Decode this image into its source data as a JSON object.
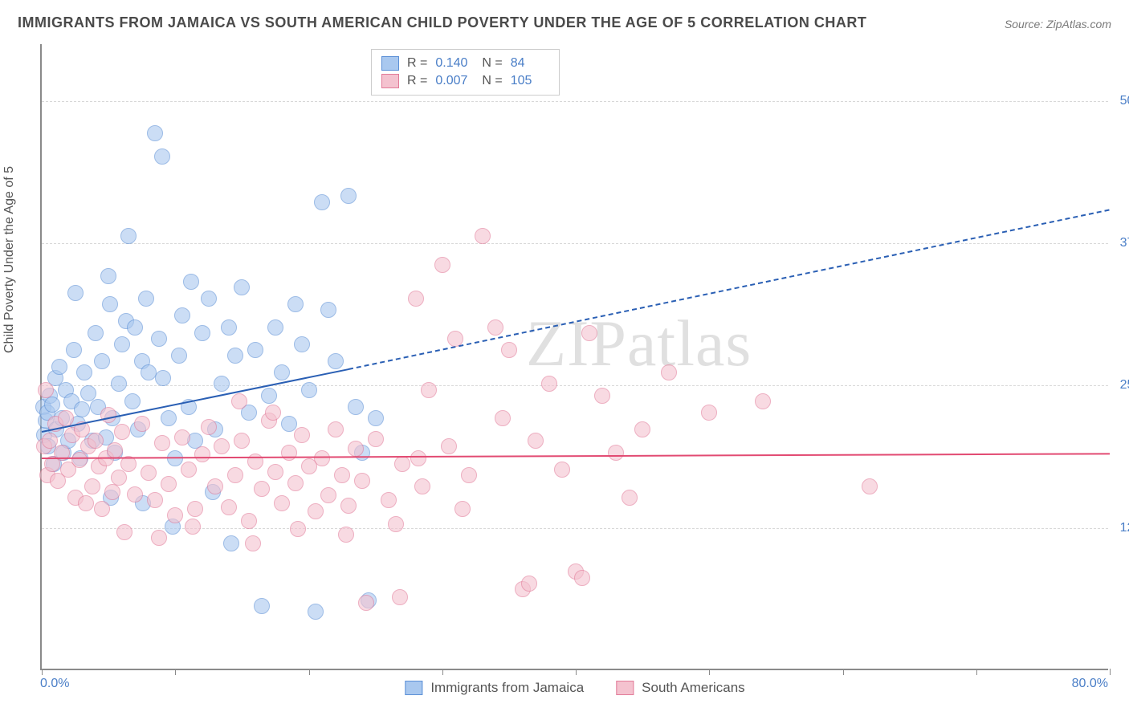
{
  "title": "IMMIGRANTS FROM JAMAICA VS SOUTH AMERICAN CHILD POVERTY UNDER THE AGE OF 5 CORRELATION CHART",
  "source": "Source: ZipAtlas.com",
  "watermark": {
    "zip": "ZIP",
    "atlas": "atlas"
  },
  "chart": {
    "type": "scatter",
    "ylabel": "Child Poverty Under the Age of 5",
    "background_color": "#ffffff",
    "grid_color": "#d8d8d8",
    "axis_color": "#8a8a8a",
    "tick_label_color": "#4a7ec7",
    "tick_fontsize": 16,
    "title_fontsize": 18,
    "title_color": "#4a4a4a",
    "ylabel_fontsize": 16,
    "xlim": [
      0,
      80
    ],
    "ylim": [
      0,
      55
    ],
    "xtick_positions": [
      0,
      10,
      20,
      30,
      40,
      50,
      60,
      70,
      80
    ],
    "xtick_labels": {
      "min": "0.0%",
      "max": "80.0%"
    },
    "ytick_positions": [
      12.5,
      25.0,
      37.5,
      50.0
    ],
    "ytick_labels": [
      "12.5%",
      "25.0%",
      "37.5%",
      "50.0%"
    ],
    "marker_radius": 10,
    "marker_opacity": 0.6,
    "series": [
      {
        "id": "jamaica",
        "label": "Immigrants from Jamaica",
        "fill_color": "#a9c8ef",
        "border_color": "#5b8fd6",
        "legend_r": "0.140",
        "legend_n": "84",
        "trend": {
          "color": "#2a5fb4",
          "width": 2,
          "solid_segment": {
            "x1": 0,
            "y1": 21.0,
            "x2": 23,
            "y2": 26.5
          },
          "dashed_segment": {
            "x1": 23,
            "y1": 26.5,
            "x2": 80,
            "y2": 40.5
          }
        },
        "points": [
          [
            0.1,
            23.0
          ],
          [
            0.2,
            20.5
          ],
          [
            0.3,
            21.8
          ],
          [
            0.4,
            22.5
          ],
          [
            0.5,
            19.5
          ],
          [
            0.6,
            24.0
          ],
          [
            0.8,
            23.2
          ],
          [
            0.9,
            18.0
          ],
          [
            1.0,
            25.5
          ],
          [
            1.1,
            21.0
          ],
          [
            1.3,
            26.5
          ],
          [
            1.5,
            22.0
          ],
          [
            1.6,
            19.0
          ],
          [
            1.8,
            24.5
          ],
          [
            2.0,
            20.0
          ],
          [
            2.2,
            23.5
          ],
          [
            2.4,
            28.0
          ],
          [
            2.5,
            33.0
          ],
          [
            2.7,
            21.5
          ],
          [
            2.9,
            18.5
          ],
          [
            3.0,
            22.8
          ],
          [
            3.2,
            26.0
          ],
          [
            3.5,
            24.2
          ],
          [
            3.8,
            20.0
          ],
          [
            4.0,
            29.5
          ],
          [
            4.2,
            23.0
          ],
          [
            4.5,
            27.0
          ],
          [
            4.8,
            20.3
          ],
          [
            5.0,
            34.5
          ],
          [
            5.1,
            32.0
          ],
          [
            5.3,
            22.0
          ],
          [
            5.5,
            19.0
          ],
          [
            5.8,
            25.0
          ],
          [
            6.0,
            28.5
          ],
          [
            6.3,
            30.5
          ],
          [
            6.5,
            38.0
          ],
          [
            6.8,
            23.5
          ],
          [
            7.0,
            30.0
          ],
          [
            7.2,
            21.0
          ],
          [
            7.5,
            27.0
          ],
          [
            7.8,
            32.5
          ],
          [
            8.0,
            26.0
          ],
          [
            8.5,
            47.0
          ],
          [
            8.8,
            29.0
          ],
          [
            9.0,
            45.0
          ],
          [
            9.1,
            25.5
          ],
          [
            9.5,
            22.0
          ],
          [
            9.8,
            12.5
          ],
          [
            10.0,
            18.5
          ],
          [
            10.3,
            27.5
          ],
          [
            10.5,
            31.0
          ],
          [
            11.0,
            23.0
          ],
          [
            11.2,
            34.0
          ],
          [
            11.5,
            20.0
          ],
          [
            12.0,
            29.5
          ],
          [
            12.5,
            32.5
          ],
          [
            13.0,
            21.0
          ],
          [
            13.5,
            25.0
          ],
          [
            14.0,
            30.0
          ],
          [
            14.2,
            11.0
          ],
          [
            14.5,
            27.5
          ],
          [
            15.0,
            33.5
          ],
          [
            15.5,
            22.5
          ],
          [
            16.0,
            28.0
          ],
          [
            16.5,
            5.5
          ],
          [
            17.0,
            24.0
          ],
          [
            17.5,
            30.0
          ],
          [
            18.0,
            26.0
          ],
          [
            18.5,
            21.5
          ],
          [
            19.0,
            32.0
          ],
          [
            19.5,
            28.5
          ],
          [
            20.0,
            24.5
          ],
          [
            20.5,
            5.0
          ],
          [
            21.0,
            41.0
          ],
          [
            21.5,
            31.5
          ],
          [
            22.0,
            27.0
          ],
          [
            23.0,
            41.5
          ],
          [
            23.5,
            23.0
          ],
          [
            24.0,
            19.0
          ],
          [
            24.5,
            6.0
          ],
          [
            25.0,
            22.0
          ],
          [
            5.2,
            15.0
          ],
          [
            7.6,
            14.5
          ],
          [
            12.8,
            15.5
          ]
        ]
      },
      {
        "id": "south_american",
        "label": "South Americans",
        "fill_color": "#f4c2cf",
        "border_color": "#e27a98",
        "legend_r": "0.007",
        "legend_n": "105",
        "trend": {
          "color": "#e24a72",
          "width": 2,
          "solid_segment": {
            "x1": 0,
            "y1": 18.7,
            "x2": 80,
            "y2": 19.1
          },
          "dashed_segment": null
        },
        "points": [
          [
            0.2,
            19.5
          ],
          [
            0.4,
            17.0
          ],
          [
            0.6,
            20.0
          ],
          [
            0.8,
            18.0
          ],
          [
            1.0,
            21.5
          ],
          [
            1.2,
            16.5
          ],
          [
            1.5,
            19.0
          ],
          [
            1.8,
            22.0
          ],
          [
            2.0,
            17.5
          ],
          [
            2.3,
            20.5
          ],
          [
            2.5,
            15.0
          ],
          [
            2.8,
            18.3
          ],
          [
            3.0,
            21.0
          ],
          [
            3.3,
            14.5
          ],
          [
            3.5,
            19.5
          ],
          [
            3.8,
            16.0
          ],
          [
            4.0,
            20.0
          ],
          [
            4.3,
            17.8
          ],
          [
            4.5,
            14.0
          ],
          [
            4.8,
            18.5
          ],
          [
            5.0,
            22.3
          ],
          [
            5.3,
            15.5
          ],
          [
            5.5,
            19.2
          ],
          [
            5.8,
            16.8
          ],
          [
            6.0,
            20.8
          ],
          [
            6.5,
            18.0
          ],
          [
            7.0,
            15.3
          ],
          [
            7.5,
            21.5
          ],
          [
            8.0,
            17.2
          ],
          [
            8.5,
            14.8
          ],
          [
            9.0,
            19.8
          ],
          [
            9.5,
            16.2
          ],
          [
            10.0,
            13.5
          ],
          [
            10.5,
            20.3
          ],
          [
            11.0,
            17.5
          ],
          [
            11.5,
            14.0
          ],
          [
            12.0,
            18.8
          ],
          [
            12.5,
            21.2
          ],
          [
            13.0,
            16.0
          ],
          [
            13.5,
            19.5
          ],
          [
            14.0,
            14.2
          ],
          [
            14.5,
            17.0
          ],
          [
            15.0,
            20.0
          ],
          [
            15.5,
            13.0
          ],
          [
            16.0,
            18.2
          ],
          [
            16.5,
            15.8
          ],
          [
            17.0,
            21.8
          ],
          [
            17.5,
            17.3
          ],
          [
            18.0,
            14.5
          ],
          [
            18.5,
            19.0
          ],
          [
            19.0,
            16.3
          ],
          [
            19.5,
            20.5
          ],
          [
            20.0,
            17.8
          ],
          [
            20.5,
            13.8
          ],
          [
            21.0,
            18.5
          ],
          [
            21.5,
            15.2
          ],
          [
            22.0,
            21.0
          ],
          [
            22.5,
            17.0
          ],
          [
            23.0,
            14.3
          ],
          [
            23.5,
            19.3
          ],
          [
            24.0,
            16.5
          ],
          [
            25.0,
            20.2
          ],
          [
            26.0,
            14.8
          ],
          [
            27.0,
            18.0
          ],
          [
            28.0,
            32.5
          ],
          [
            28.5,
            16.0
          ],
          [
            29.0,
            24.5
          ],
          [
            30.0,
            35.5
          ],
          [
            30.5,
            19.5
          ],
          [
            31.0,
            29.0
          ],
          [
            32.0,
            17.0
          ],
          [
            33.0,
            38.0
          ],
          [
            34.0,
            30.0
          ],
          [
            34.5,
            22.0
          ],
          [
            35.0,
            28.0
          ],
          [
            36.0,
            7.0
          ],
          [
            36.5,
            7.5
          ],
          [
            37.0,
            20.0
          ],
          [
            38.0,
            25.0
          ],
          [
            39.0,
            17.5
          ],
          [
            40.0,
            8.5
          ],
          [
            40.5,
            8.0
          ],
          [
            41.0,
            29.5
          ],
          [
            42.0,
            24.0
          ],
          [
            43.0,
            19.0
          ],
          [
            44.0,
            15.0
          ],
          [
            45.0,
            21.0
          ],
          [
            47.0,
            26.0
          ],
          [
            50.0,
            22.5
          ],
          [
            54.0,
            23.5
          ],
          [
            62.0,
            16.0
          ],
          [
            6.2,
            12.0
          ],
          [
            8.8,
            11.5
          ],
          [
            11.3,
            12.5
          ],
          [
            15.8,
            11.0
          ],
          [
            19.2,
            12.3
          ],
          [
            22.8,
            11.8
          ],
          [
            26.5,
            12.7
          ],
          [
            24.3,
            5.8
          ],
          [
            28.2,
            18.5
          ],
          [
            31.5,
            14.0
          ],
          [
            26.8,
            6.3
          ],
          [
            17.3,
            22.5
          ],
          [
            14.8,
            23.5
          ],
          [
            0.3,
            24.5
          ]
        ]
      }
    ]
  }
}
